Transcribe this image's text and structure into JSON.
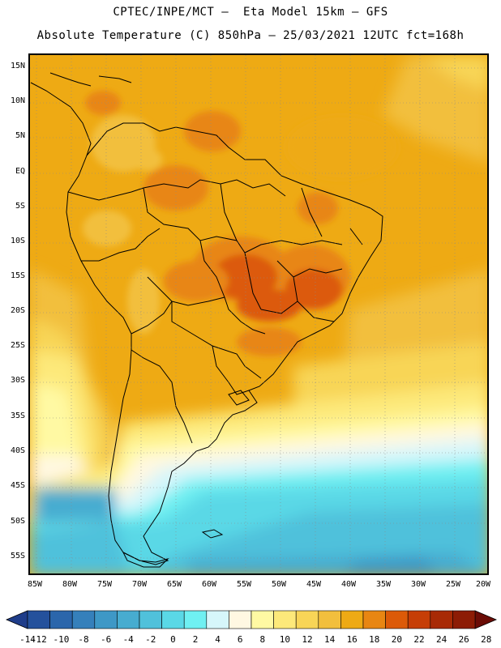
{
  "title": {
    "line1": "CPTEC/INPE/MCT –  Eta Model 15km – GFS",
    "line2": "Absolute Temperature (C) 850hPa – 25/03/2021 12UTC fct=168h"
  },
  "map": {
    "lat_labels": [
      "15N",
      "10N",
      "5N",
      "EQ",
      "5S",
      "10S",
      "15S",
      "20S",
      "25S",
      "30S",
      "35S",
      "40S",
      "45S",
      "50S",
      "55S"
    ],
    "lon_labels": [
      "85W",
      "80W",
      "75W",
      "70W",
      "65W",
      "60W",
      "55W",
      "50W",
      "45W",
      "40W",
      "35W",
      "30W",
      "25W",
      "20W"
    ],
    "grid": "dotted",
    "field": "temperature at 850hPa, warm (16–24 C) over tropical continent, cooling to 0–6 C south of 40S"
  },
  "colorbar": {
    "labels": [
      "-14",
      "-12",
      "-10",
      "-8",
      "-6",
      "-4",
      "-2",
      "0",
      "2",
      "4",
      "6",
      "8",
      "10",
      "12",
      "14",
      "16",
      "18",
      "20",
      "22",
      "24",
      "26",
      "28"
    ],
    "colors": [
      "#1f3d8a",
      "#24519c",
      "#2b66ab",
      "#3580bb",
      "#3e98c6",
      "#47acd0",
      "#50c1db",
      "#5ad8e6",
      "#6ff0f2",
      "#d6f6fb",
      "#fff8e2",
      "#fff9a3",
      "#fde97a",
      "#f8d557",
      "#f2bf3d",
      "#eeaa14",
      "#e88612",
      "#dc5a08",
      "#c63e06",
      "#a82a05",
      "#8d1c05",
      "#6b0c06"
    ]
  }
}
